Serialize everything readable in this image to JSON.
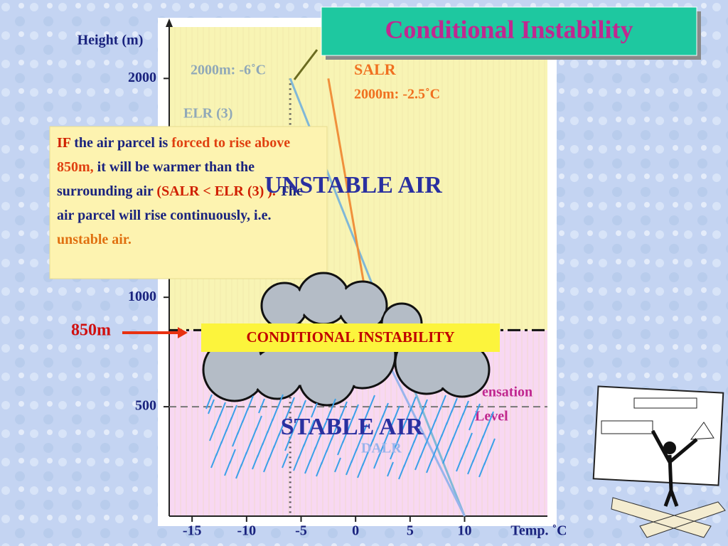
{
  "chart_data": {
    "type": "line",
    "title": "Conditional Instability",
    "y_label": "Height (m)",
    "x_label": "Temp. ˚C",
    "xlim": [
      -17.1,
      17.6
    ],
    "ylim": [
      0,
      2235
    ],
    "xticks": [
      -15,
      -10,
      -5,
      0,
      5,
      10
    ],
    "yticks": [
      500,
      1000,
      2000
    ],
    "series": [
      {
        "name": "ELR (3)",
        "color": "#80b8d8",
        "x": [
          10,
          -6
        ],
        "values": [
          0,
          2000
        ]
      },
      {
        "name": "DALR",
        "color": "#98b4ec",
        "x": [
          10,
          1.5
        ],
        "values": [
          0,
          850
        ]
      },
      {
        "name": "SALR",
        "color": "#f0903c",
        "x": [
          1.5,
          -2.5
        ],
        "values": [
          850,
          2000
        ]
      }
    ],
    "level_line": {
      "value": 850,
      "label": "850m"
    },
    "condensation_line": {
      "value": 500,
      "label_1": "ensation",
      "label_2": "Level"
    },
    "elr_note": "2000m: -6˚C",
    "salr_note": "2000m: -2.5˚C",
    "unstable_label": "UNSTABLE AIR",
    "stable_label": "STABLE AIR",
    "conditional_label": "CONDITIONAL INSTABILITY",
    "info_box": [
      {
        "text": "IF",
        "color": "#d02000"
      },
      {
        "text": " the air parcel is ",
        "color": "#1a237e"
      },
      {
        "text": "forced to rise above 850m,",
        "color": "#e04010"
      },
      {
        "text": " it will be warmer than the surrounding air ",
        "color": "#1a237e"
      },
      {
        "text": "(SALR < ELR (3) ).",
        "color": "#d02000"
      },
      {
        "text": " The air parcel will rise continuously, i.e. ",
        "color": "#1a237e"
      },
      {
        "text": "unstable air.",
        "color": "#e07010"
      }
    ]
  }
}
